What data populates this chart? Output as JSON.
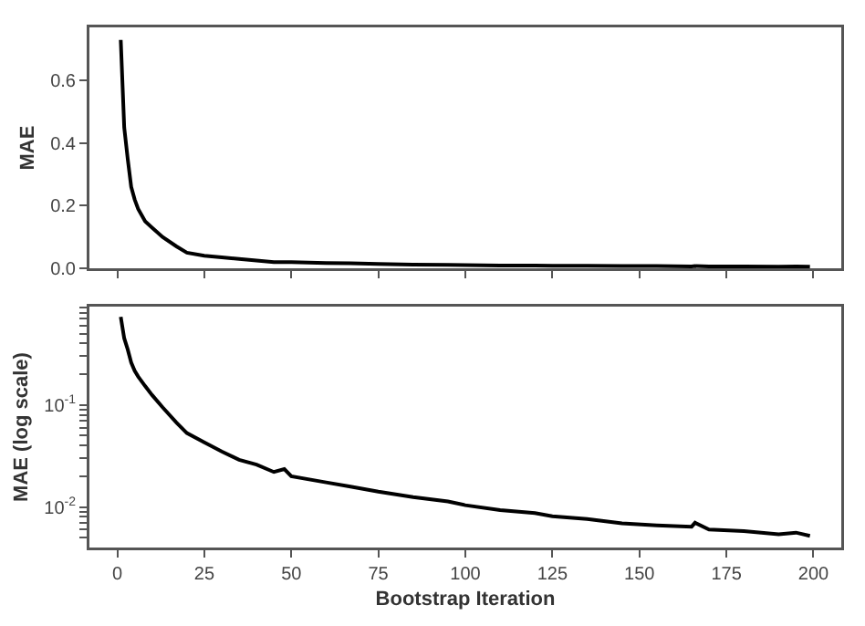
{
  "chart_data": [
    {
      "type": "line",
      "ylabel": "MAE",
      "x": [
        1,
        2,
        3,
        4,
        5,
        6,
        8,
        10,
        13,
        17,
        20,
        25,
        30,
        35,
        40,
        45,
        48,
        50,
        60,
        67,
        75,
        85,
        95,
        100,
        110,
        120,
        125,
        135,
        145,
        155,
        165,
        166,
        170,
        180,
        190,
        195,
        199
      ],
      "series": [
        {
          "color": "#000000",
          "values": [
            0.73,
            0.45,
            0.35,
            0.26,
            0.22,
            0.19,
            0.15,
            0.13,
            0.1,
            0.07,
            0.05,
            0.04,
            0.035,
            0.03,
            0.025,
            0.02,
            0.02,
            0.02,
            0.017,
            0.016,
            0.014,
            0.012,
            0.011,
            0.01,
            0.009,
            0.009,
            0.008,
            0.008,
            0.007,
            0.007,
            0.006,
            0.007,
            0.006,
            0.006,
            0.005,
            0.006,
            0.005
          ]
        }
      ],
      "xlim": [
        -8,
        208
      ],
      "xticks": [
        0,
        25,
        50,
        75,
        100,
        125,
        150,
        175,
        200
      ],
      "ylim": [
        0,
        0.77
      ],
      "yticks": [
        "0.0",
        0.2,
        0.4,
        0.6
      ],
      "tick_labels": "y",
      "grid": false,
      "marker": "none",
      "line_style": "solid"
    },
    {
      "type": "line",
      "xlabel": "Bootstrap Iteration",
      "ylabel": "MAE (log scale)",
      "x": [
        1,
        2,
        3,
        4,
        5,
        6,
        8,
        10,
        13,
        17,
        20,
        25,
        30,
        35,
        40,
        45,
        48,
        50,
        60,
        67,
        75,
        85,
        95,
        100,
        110,
        120,
        125,
        135,
        145,
        155,
        165,
        166,
        170,
        180,
        190,
        195,
        199
      ],
      "series": [
        {
          "color": "#000000",
          "values": [
            0.73,
            0.45,
            0.35,
            0.26,
            0.216,
            0.19,
            0.153,
            0.125,
            0.095,
            0.067,
            0.053,
            0.043,
            0.035,
            0.029,
            0.026,
            0.022,
            0.0235,
            0.02,
            0.0174,
            0.0158,
            0.0141,
            0.0125,
            0.0113,
            0.0104,
            0.0093,
            0.0087,
            0.0081,
            0.0076,
            0.0069,
            0.0066,
            0.0064,
            0.007,
            0.006,
            0.0058,
            0.0054,
            0.0056,
            0.0052
          ]
        }
      ],
      "xlim": [
        -8,
        208
      ],
      "xticks": [
        0,
        25,
        50,
        75,
        100,
        125,
        150,
        175,
        200
      ],
      "ylim": [
        0.004,
        0.92
      ],
      "log": "y",
      "yticks": [
        {
          "value": 0.005,
          "label": null
        },
        {
          "value": 0.006,
          "label": null
        },
        {
          "value": 0.007,
          "label": null
        },
        {
          "value": 0.008,
          "label": null
        },
        {
          "value": 0.009,
          "label": null
        },
        {
          "value": 0.01,
          "label": "10$^{-2}$"
        },
        {
          "value": 0.02,
          "label": null
        },
        {
          "value": 0.03,
          "label": null
        },
        {
          "value": 0.04,
          "label": null
        },
        {
          "value": 0.05,
          "label": null
        },
        {
          "value": 0.06,
          "label": null
        },
        {
          "value": 0.07,
          "label": null
        },
        {
          "value": 0.08,
          "label": null
        },
        {
          "value": 0.09,
          "label": null
        },
        {
          "value": 0.1,
          "label": "10$^{-1}$"
        },
        {
          "value": 0.2,
          "label": null
        },
        {
          "value": 0.3,
          "label": null
        },
        {
          "value": 0.4,
          "label": null
        },
        {
          "value": 0.5,
          "label": null
        },
        {
          "value": 0.6,
          "label": null
        },
        {
          "value": 0.7,
          "label": null
        },
        {
          "value": 0.8,
          "label": null
        },
        {
          "value": 0.9,
          "label": null
        }
      ],
      "grid": false,
      "marker": "none",
      "line_style": "solid"
    }
  ]
}
